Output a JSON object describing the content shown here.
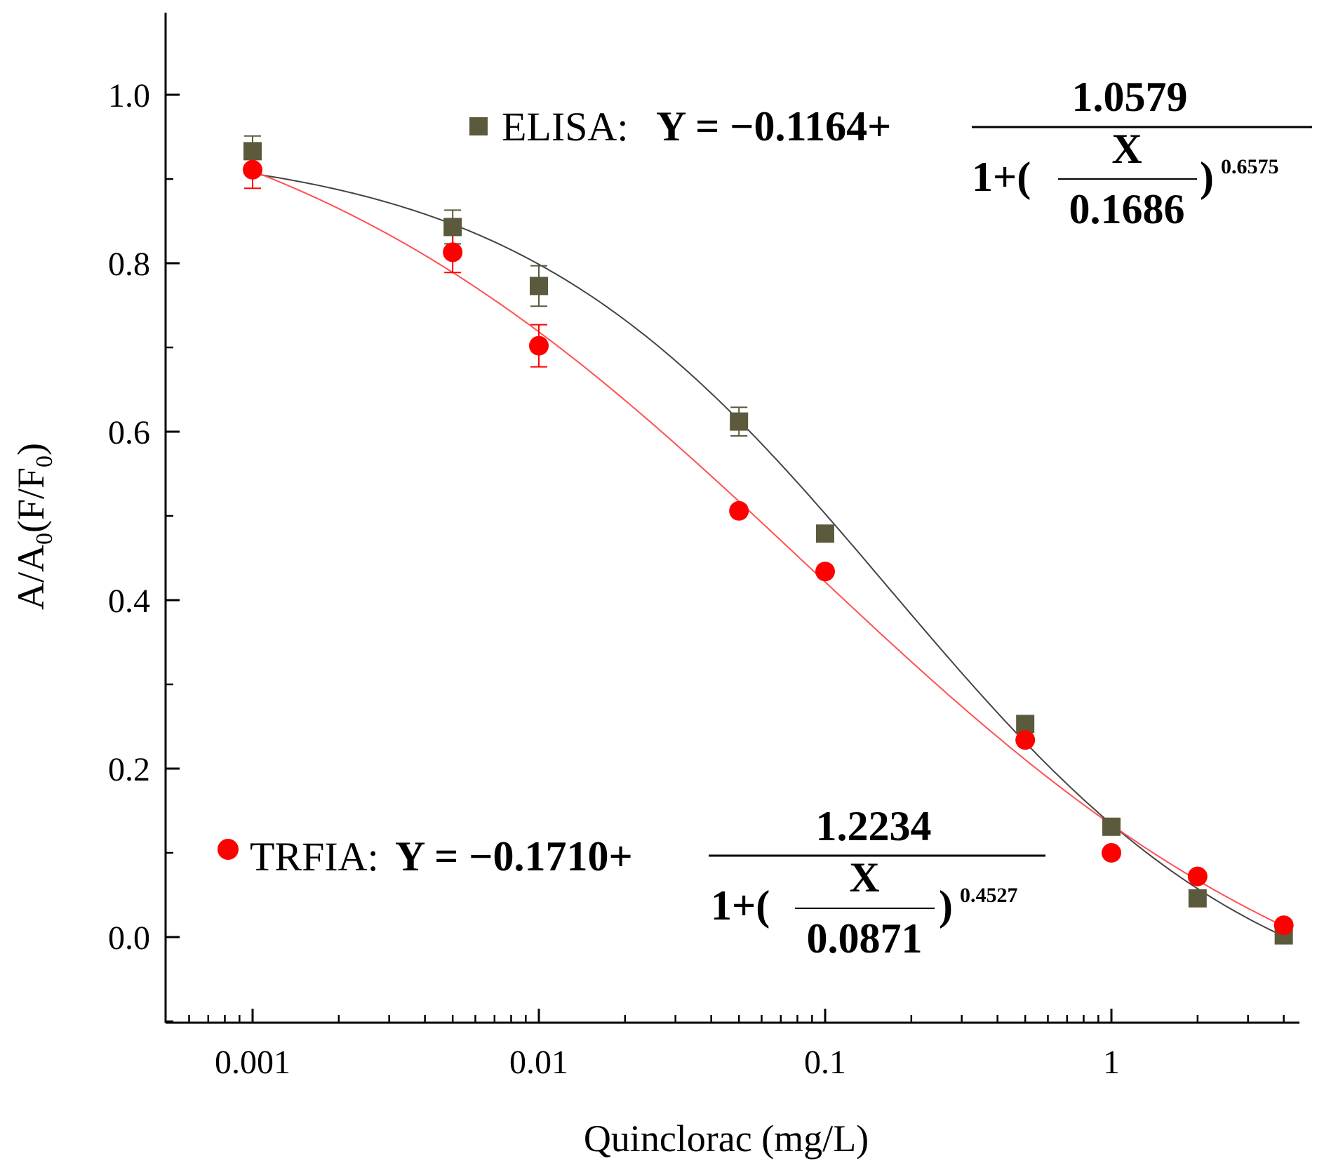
{
  "chart_data": {
    "type": "scatter",
    "title": "",
    "xlabel": "Quinclorac (mg/L)",
    "ylabel": {
      "main": "A/A",
      "sub0": "0",
      "mid": "(F/F",
      "sub1": "0",
      "end": ")"
    },
    "xscale": "log",
    "xlim": [
      0.0005,
      4.2
    ],
    "ylim": [
      -0.1,
      1.1
    ],
    "grid": false,
    "xticks": [
      {
        "value": 0.001,
        "label": "0.001"
      },
      {
        "value": 0.01,
        "label": "0.01"
      },
      {
        "value": 0.1,
        "label": "0.1"
      },
      {
        "value": 1,
        "label": "1"
      }
    ],
    "yticks": [
      {
        "value": 0.0,
        "label": "0.0"
      },
      {
        "value": 0.2,
        "label": "0.2"
      },
      {
        "value": 0.4,
        "label": "0.4"
      },
      {
        "value": 0.6,
        "label": "0.6"
      },
      {
        "value": 0.8,
        "label": "0.8"
      },
      {
        "value": 1.0,
        "label": "1.0"
      }
    ],
    "series": [
      {
        "name": "ELISA",
        "marker": "square",
        "color": "#5b5a3c",
        "line_color": "#444444",
        "x": [
          0.001,
          0.005,
          0.01,
          0.05,
          0.1,
          0.5,
          1,
          2,
          4
        ],
        "y": [
          0.933,
          0.843,
          0.773,
          0.612,
          0.479,
          0.253,
          0.131,
          0.046,
          0.002
        ],
        "err": [
          0.018,
          0.02,
          0.024,
          0.017,
          0.0,
          0.0,
          0.0,
          0.0,
          0.0
        ],
        "fit": {
          "A1": -0.1164,
          "A": 1.0579,
          "x0": 0.1686,
          "p": 0.6575
        },
        "equation": {
          "label": "ELISA:",
          "lhs": "Y = −0.1164+",
          "numerator": "1.0579",
          "one_plus": "1+(",
          "frac_num": "X",
          "frac_den": "0.1686",
          "close": ")",
          "exponent": "0.6575"
        }
      },
      {
        "name": "TRFIA",
        "marker": "circle",
        "color": "#ff0000",
        "line_color": "#ff5050",
        "x": [
          0.001,
          0.005,
          0.01,
          0.05,
          0.1,
          0.5,
          1,
          2,
          4
        ],
        "y": [
          0.911,
          0.813,
          0.702,
          0.506,
          0.434,
          0.234,
          0.1,
          0.072,
          0.014
        ],
        "err": [
          0.022,
          0.024,
          0.025,
          0.0,
          0.0,
          0.0,
          0.0,
          0.0,
          0.0
        ],
        "fit": {
          "A1": -0.171,
          "A": 1.2234,
          "x0": 0.0871,
          "p": 0.4527
        },
        "equation": {
          "label": "TRFIA:",
          "lhs": "Y = −0.1710+",
          "numerator": "1.2234",
          "one_plus": "1+(",
          "frac_num": "X",
          "frac_den": "0.0871",
          "close": ")",
          "exponent": "0.4527"
        }
      }
    ]
  }
}
